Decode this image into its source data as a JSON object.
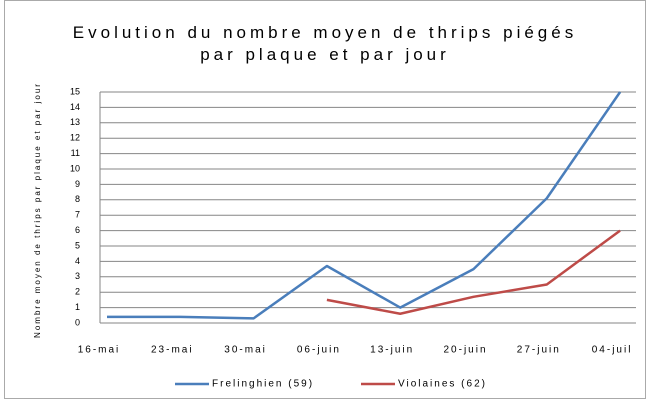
{
  "chart_data": {
    "type": "line",
    "title": "Evolution du nombre moyen de thrips piégés par plaque et par jour",
    "y_label": "Nombre moyen de thrips par plaque et par jour",
    "categories": [
      "16-mai",
      "23-mai",
      "30-mai",
      "06-juin",
      "13-juin",
      "20-juin",
      "27-juin",
      "04-juil"
    ],
    "series": [
      {
        "name": "Frelinghien (59)",
        "color": "#4a7ebb",
        "values": [
          0.4,
          0.4,
          0.3,
          3.7,
          1.0,
          3.5,
          8.1,
          15.0
        ]
      },
      {
        "name": "Violaines (62)",
        "color": "#be4b48",
        "values": [
          null,
          null,
          null,
          1.5,
          0.6,
          1.7,
          2.5,
          6.0
        ]
      }
    ],
    "ylim": [
      0,
      15
    ],
    "yticks": [
      0,
      1,
      2,
      3,
      4,
      5,
      6,
      7,
      8,
      9,
      10,
      11,
      12,
      13,
      14,
      15
    ],
    "grid": true,
    "legend": "bottom"
  }
}
